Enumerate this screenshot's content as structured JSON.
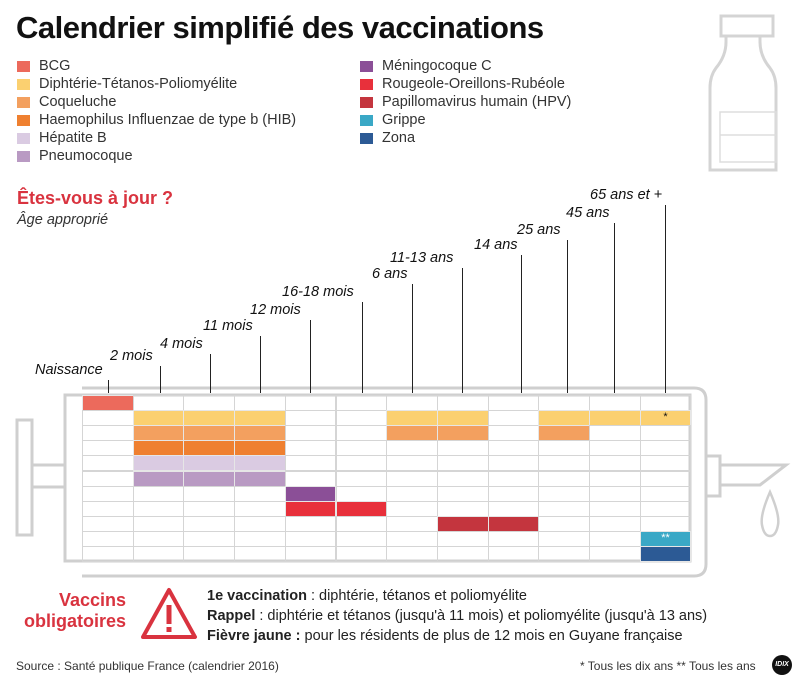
{
  "title": "Calendrier simplifié des vaccinations",
  "legend": [
    {
      "label": "BCG",
      "color": "#ec6a5c"
    },
    {
      "label": "Diphtérie-Tétanos-Poliomyélite",
      "color": "#fbd070"
    },
    {
      "label": "Coqueluche",
      "color": "#f3a05f"
    },
    {
      "label": "Haemophilus Influenzae de type b (HIB)",
      "color": "#ef8030"
    },
    {
      "label": "Hépatite B",
      "color": "#dacbe2"
    },
    {
      "label": "Pneumocoque",
      "color": "#b99ac3"
    },
    {
      "label": "Méningocoque C",
      "color": "#8b4f97"
    },
    {
      "label": "Rougeole-Oreillons-Rubéole",
      "color": "#e8303b"
    },
    {
      "label": "Papillomavirus humain (HPV)",
      "color": "#c4353e"
    },
    {
      "label": "Grippe",
      "color": "#3aa8c6"
    },
    {
      "label": "Zona",
      "color": "#2c5a95"
    }
  ],
  "section": {
    "question": "Êtes-vous à jour ?",
    "subtitle": "Âge approprié"
  },
  "ages": [
    "Naissance",
    "2 mois",
    "4 mois",
    "11 mois",
    "12 mois",
    "16-18 mois",
    "6 ans",
    "11-13 ans",
    "14 ans",
    "25 ans",
    "45 ans",
    "65 ans et +"
  ],
  "schedule": [
    {
      "vaccine": "BCG",
      "ages": [
        0
      ]
    },
    {
      "vaccine": "Diphtérie-Tétanos-Poliomyélite",
      "ages": [
        1,
        2,
        3,
        6,
        7,
        9,
        10,
        11
      ],
      "marks": {
        "11": "*"
      }
    },
    {
      "vaccine": "Coqueluche",
      "ages": [
        1,
        2,
        3,
        6,
        7,
        9
      ]
    },
    {
      "vaccine": "Haemophilus Influenzae de type b (HIB)",
      "ages": [
        1,
        2,
        3
      ]
    },
    {
      "vaccine": "Hépatite B",
      "ages": [
        1,
        2,
        3
      ]
    },
    {
      "vaccine": "Pneumocoque",
      "ages": [
        1,
        2,
        3
      ]
    },
    {
      "vaccine": "Méningocoque C",
      "ages": [
        4
      ]
    },
    {
      "vaccine": "Rougeole-Oreillons-Rubéole",
      "ages": [
        4,
        5
      ]
    },
    {
      "vaccine": "Papillomavirus humain (HPV)",
      "ages": [
        7,
        8
      ]
    },
    {
      "vaccine": "Grippe",
      "ages": [
        11
      ],
      "marks": {
        "11": "**"
      }
    },
    {
      "vaccine": "Zona",
      "ages": [
        11
      ]
    }
  ],
  "mandatory": {
    "heading": "Vaccins obligatoires",
    "notes": [
      {
        "bold": "1e vaccination",
        "text": " : diphtérie, tétanos et poliomyélite"
      },
      {
        "bold": "Rappel",
        "text": " : diphtérie et tétanos (jusqu'à 11 mois) et poliomyélite (jusqu'à 13 ans)"
      },
      {
        "bold": "Fièvre jaune :",
        "text": " pour les résidents de plus de 12 mois en Guyane française"
      }
    ]
  },
  "source": "Source : Santé publique France (calendrier 2016)",
  "footnote": "* Tous les dix ans ** Tous les ans",
  "logo": "IDIX",
  "colors": {
    "accent": "#d9333f",
    "outline": "#cfcfcf"
  }
}
